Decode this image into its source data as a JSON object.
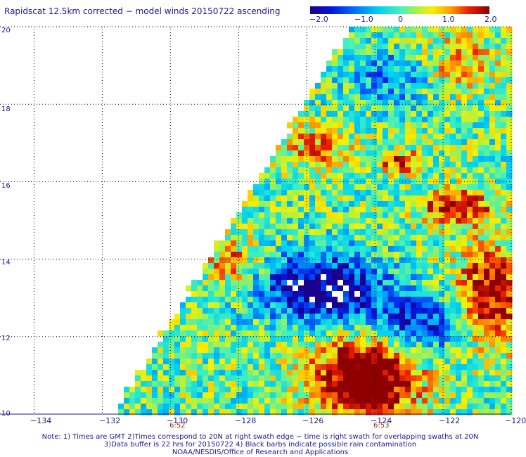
{
  "title": "Rapidscat 12.5km corrected − model winds 20150722 ascending",
  "colorbar": {
    "ticks": [
      "−2.0",
      "−1.0",
      "0",
      "1.0",
      "2.0"
    ],
    "values": [
      -2.0,
      -1.0,
      0,
      1.0,
      2.0
    ],
    "range": [
      -2.0,
      2.0
    ]
  },
  "axes": {
    "x_ticks": [
      "−134",
      "−132",
      "−130",
      "−128",
      "−126",
      "−124",
      "−122",
      "−120"
    ],
    "x_values": [
      -134,
      -132,
      -130,
      -128,
      -126,
      -124,
      -122,
      -120
    ],
    "y_ticks": [
      "20",
      "18",
      "16",
      "14",
      "12",
      "10"
    ],
    "y_values": [
      20,
      18,
      16,
      14,
      12,
      10
    ],
    "lon_range": [
      -135,
      -120
    ],
    "lat_range": [
      10,
      20
    ]
  },
  "swath_times": [
    {
      "label": "6:52",
      "lon": -130
    },
    {
      "label": "6:53",
      "lon": -124
    }
  ],
  "notes": [
    "Note: 1) Times are GMT 2)Times correspond to 20N at right swath edge − time is right swath for overlapping swaths at 20N",
    "3)Data buffer is 22 hrs for 20150722 4) Black barbs indicate possible rain contamination",
    "NOAA/NESDIS/Office of Research and Applications"
  ],
  "colors": {
    "text": "#1a1a8c",
    "time_text": "#8b2a0a",
    "grid": "#000000",
    "missing": "#ffffff"
  }
}
